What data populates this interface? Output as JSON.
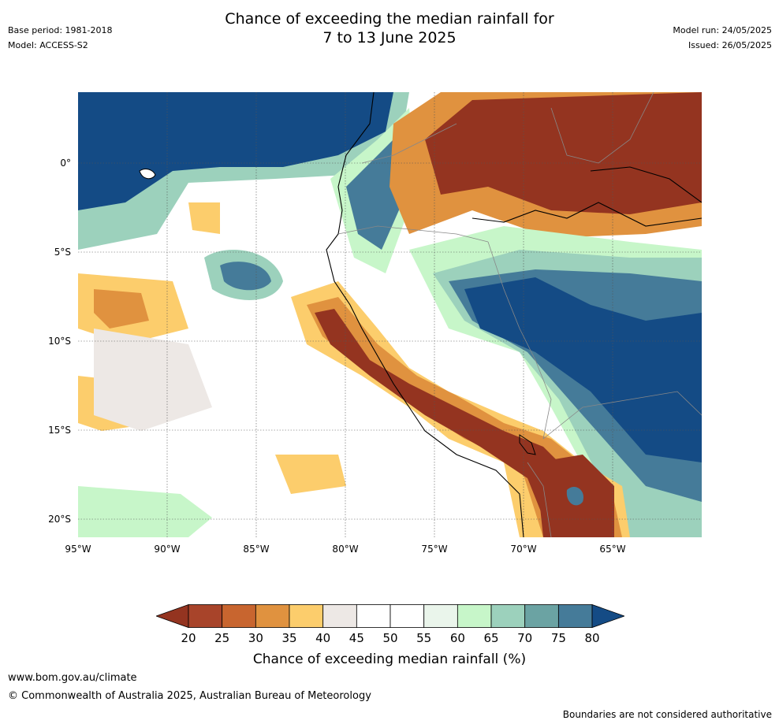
{
  "header": {
    "base_period": "Base period: 1981-2018",
    "model": "Model: ACCESS-S2",
    "title_line1": "Chance of exceeding the median rainfall for",
    "title_line2": "7 to 13 June 2025",
    "model_run": "Model run: 24/05/2025",
    "issued": "Issued: 26/05/2025"
  },
  "map": {
    "lat_labels": [
      "0°",
      "5°S",
      "10°S",
      "15°S",
      "20°S"
    ],
    "lon_labels": [
      "95°W",
      "90°W",
      "85°W",
      "80°W",
      "75°W",
      "70°W",
      "65°W"
    ],
    "ocean_background": "#ffffff",
    "region_colors": {
      "very_wet": "#144b85",
      "wet": "#457b99",
      "moderately_wet": "#9cd1bc",
      "slightly_wet": "#c7f6c9",
      "near_median": "#ffffff",
      "slightly_dry": "#ede8e5",
      "moderately_dry": "#fccd6c",
      "dry": "#e0923f",
      "very_dry": "#943420"
    }
  },
  "colorbar": {
    "ticks": [
      "20",
      "25",
      "30",
      "35",
      "40",
      "45",
      "50",
      "55",
      "60",
      "65",
      "70",
      "75",
      "80"
    ],
    "label": "Chance of exceeding median rainfall (%)",
    "colors": [
      "#a8442a",
      "#c8652f",
      "#e0923f",
      "#fccd6c",
      "#ede8e5",
      "#ffffff",
      "#ffffff",
      "#eaf5eb",
      "#c7f6c9",
      "#9cd1bc",
      "#6ba3a3",
      "#457b99"
    ],
    "low_end_color": "#943420",
    "high_end_color": "#144b85"
  },
  "footer": {
    "url": "www.bom.gov.au/climate",
    "copyright": "© Commonwealth of Australia 2025, Australian Bureau of Meteorology",
    "disclaimer": "Boundaries are not considered authoritative"
  }
}
